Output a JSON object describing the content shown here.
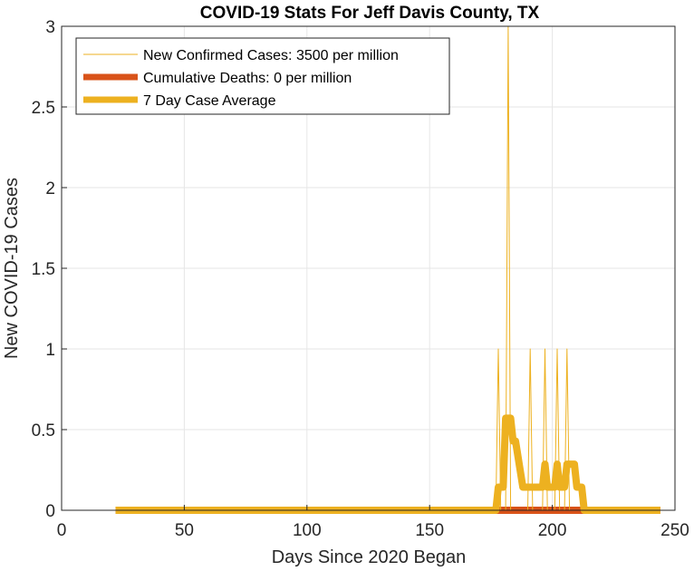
{
  "chart_data": {
    "type": "line",
    "title": "COVID-19 Stats For Jeff Davis County, TX",
    "xlabel": "Days Since 2020 Began",
    "ylabel": "New COVID-19 Cases",
    "xlim": [
      0,
      250
    ],
    "ylim": [
      0,
      3
    ],
    "xticks": [
      0,
      50,
      100,
      150,
      200,
      250
    ],
    "xtick_labels": [
      "0",
      "50",
      "100",
      "150",
      "200",
      "250"
    ],
    "yticks": [
      0,
      0.5,
      1,
      1.5,
      2,
      2.5,
      3
    ],
    "ytick_labels": [
      "0",
      "0.5",
      "1",
      "1.5",
      "2",
      "2.5",
      "3"
    ],
    "grid": true,
    "legend_position": "top-left",
    "series": [
      {
        "name": "New Confirmed Cases: 3500 per million",
        "color": "#EDB120",
        "style": "thin",
        "x": [
          22,
          177,
          178,
          179,
          181,
          182,
          183,
          190,
          191,
          192,
          196,
          197,
          198,
          201,
          202,
          203,
          205,
          206,
          207,
          244
        ],
        "y": [
          0,
          0,
          1,
          0,
          0,
          3,
          0,
          0,
          1,
          0,
          0,
          1,
          0,
          0,
          1,
          0,
          0,
          1,
          0,
          0
        ]
      },
      {
        "name": "Cumulative Deaths: 0 per million",
        "color": "#D95319",
        "style": "thick",
        "x": [
          22,
          244
        ],
        "y": [
          0,
          0
        ]
      },
      {
        "name": "7 Day Case Average",
        "color": "#EDB120",
        "style": "thick",
        "x": [
          22,
          177,
          178,
          180,
          181,
          183,
          184,
          185,
          188,
          189,
          191,
          196,
          197,
          198,
          201,
          202,
          203,
          205,
          206,
          209,
          210,
          212,
          213,
          244
        ],
        "y": [
          0,
          0,
          0.143,
          0.143,
          0.571,
          0.571,
          0.429,
          0.429,
          0.143,
          0.143,
          0.143,
          0.143,
          0.286,
          0.143,
          0.143,
          0.286,
          0.143,
          0.143,
          0.286,
          0.286,
          0.143,
          0.143,
          0,
          0
        ]
      }
    ]
  }
}
